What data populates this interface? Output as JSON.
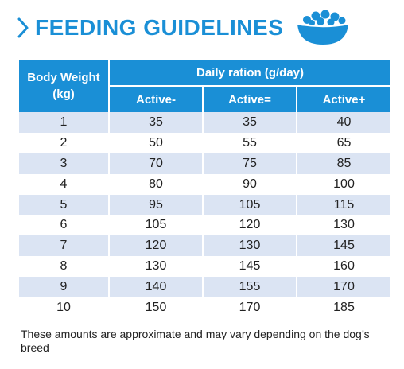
{
  "header": {
    "title": "FEEDING GUIDELINES",
    "accent_color": "#1a8fd6",
    "chevron_icon": "chevron-right-icon",
    "bowl_icon": "food-bowl-icon"
  },
  "table": {
    "col_body_weight": "Body Weight (kg)",
    "col_daily_ration": "Daily ration (g/day)",
    "sub_headers": [
      "Active-",
      "Active=",
      "Active+"
    ],
    "rows": [
      [
        "1",
        "35",
        "35",
        "40"
      ],
      [
        "2",
        "50",
        "55",
        "65"
      ],
      [
        "3",
        "70",
        "75",
        "85"
      ],
      [
        "4",
        "80",
        "90",
        "100"
      ],
      [
        "5",
        "95",
        "105",
        "115"
      ],
      [
        "6",
        "105",
        "120",
        "130"
      ],
      [
        "7",
        "120",
        "130",
        "145"
      ],
      [
        "8",
        "130",
        "145",
        "160"
      ],
      [
        "9",
        "140",
        "155",
        "170"
      ],
      [
        "10",
        "150",
        "170",
        "185"
      ]
    ],
    "row_stripe_color": "#dbe4f3"
  },
  "footnote": "These amounts are approximate and may vary depending on the dog’s breed"
}
